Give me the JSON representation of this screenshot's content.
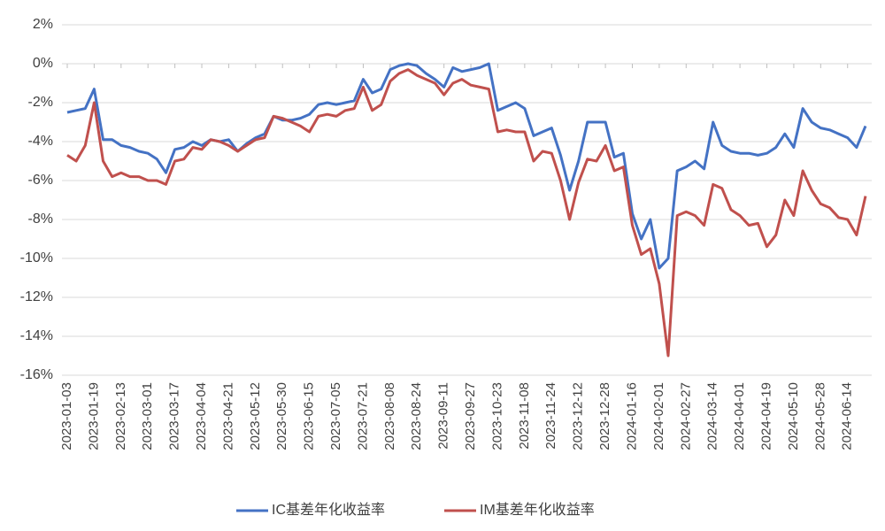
{
  "chart_data": {
    "type": "line",
    "categories": [
      "2023-01-03",
      null,
      null,
      "2023-01-19",
      null,
      null,
      "2023-02-13",
      null,
      null,
      "2023-03-01",
      null,
      null,
      "2023-03-17",
      null,
      null,
      "2023-04-04",
      null,
      null,
      "2023-04-21",
      null,
      null,
      "2023-05-12",
      null,
      null,
      "2023-05-30",
      null,
      null,
      "2023-06-15",
      null,
      null,
      "2023-07-05",
      null,
      null,
      "2023-07-21",
      null,
      null,
      "2023-08-08",
      null,
      null,
      "2023-08-24",
      null,
      null,
      "2023-09-11",
      null,
      null,
      "2023-09-27",
      null,
      null,
      "2023-10-23",
      null,
      null,
      "2023-11-08",
      null,
      null,
      "2023-11-24",
      null,
      null,
      "2023-12-12",
      null,
      null,
      "2023-12-28",
      null,
      null,
      "2024-01-16",
      null,
      null,
      "2024-02-01",
      null,
      null,
      "2024-02-27",
      null,
      null,
      "2024-03-14",
      null,
      null,
      "2024-04-01",
      null,
      null,
      "2024-04-19",
      null,
      null,
      "2024-05-10",
      null,
      null,
      "2024-05-28",
      null,
      null,
      "2024-06-14",
      null,
      null
    ],
    "series": [
      {
        "name": "IC基差年化收益率",
        "color": "#4472c4",
        "values": [
          -2.5,
          -2.4,
          -2.3,
          -1.3,
          -3.9,
          -3.9,
          -4.2,
          -4.3,
          -4.5,
          -4.6,
          -4.9,
          -5.6,
          -4.4,
          -4.3,
          -4.0,
          -4.2,
          -3.9,
          -4.0,
          -3.9,
          -4.5,
          -4.1,
          -3.8,
          -3.6,
          -2.7,
          -2.9,
          -2.9,
          -2.8,
          -2.6,
          -2.1,
          -2.0,
          -2.1,
          -2.0,
          -1.9,
          -0.8,
          -1.5,
          -1.3,
          -0.3,
          -0.1,
          0.0,
          -0.1,
          -0.5,
          -0.8,
          -1.2,
          -0.2,
          -0.4,
          -0.3,
          -0.2,
          0.0,
          -2.4,
          -2.2,
          -2.0,
          -2.3,
          -3.7,
          -3.5,
          -3.3,
          -4.7,
          -6.5,
          -5.0,
          -3.0,
          -3.0,
          -3.0,
          -4.8,
          -4.6,
          -7.7,
          -9.0,
          -8.0,
          -10.5,
          -10.0,
          -5.5,
          -5.3,
          -5.0,
          -5.4,
          -3.0,
          -4.2,
          -4.5,
          -4.6,
          -4.6,
          -4.7,
          -4.6,
          -4.3,
          -3.6,
          -4.3,
          -2.3,
          -3.0,
          -3.3,
          -3.4,
          -3.6,
          -3.8,
          -4.3,
          -3.2
        ]
      },
      {
        "name": "IM基差年化收益率",
        "color": "#c0504d",
        "values": [
          -4.7,
          -5.0,
          -4.2,
          -2.0,
          -5.0,
          -5.8,
          -5.6,
          -5.8,
          -5.8,
          -6.0,
          -6.0,
          -6.2,
          -5.0,
          -4.9,
          -4.3,
          -4.4,
          -3.9,
          -4.0,
          -4.2,
          -4.5,
          -4.2,
          -3.9,
          -3.8,
          -2.7,
          -2.8,
          -3.0,
          -3.2,
          -3.5,
          -2.7,
          -2.6,
          -2.7,
          -2.4,
          -2.3,
          -1.2,
          -2.4,
          -2.1,
          -0.9,
          -0.5,
          -0.3,
          -0.6,
          -0.8,
          -1.0,
          -1.6,
          -1.0,
          -0.8,
          -1.1,
          -1.2,
          -1.3,
          -3.5,
          -3.4,
          -3.5,
          -3.5,
          -5.0,
          -4.5,
          -4.6,
          -6.0,
          -8.0,
          -6.1,
          -4.9,
          -5.0,
          -4.2,
          -5.5,
          -5.3,
          -8.3,
          -9.8,
          -9.5,
          -11.3,
          -15.0,
          -7.8,
          -7.6,
          -7.8,
          -8.3,
          -6.2,
          -6.4,
          -7.5,
          -7.8,
          -8.3,
          -8.2,
          -9.4,
          -8.8,
          -7.0,
          -7.8,
          -5.5,
          -6.5,
          -7.2,
          -7.4,
          -7.9,
          -8.0,
          -8.8,
          -6.8
        ]
      }
    ],
    "ylim": [
      -16,
      2
    ],
    "yticks": [
      {
        "value": 2,
        "label": "2%"
      },
      {
        "value": 0,
        "label": "0%"
      },
      {
        "value": -2,
        "label": "-2%"
      },
      {
        "value": -4,
        "label": "-4%"
      },
      {
        "value": -6,
        "label": "-6%"
      },
      {
        "value": -8,
        "label": "-8%"
      },
      {
        "value": -10,
        "label": "-10%"
      },
      {
        "value": -12,
        "label": "-12%"
      },
      {
        "value": -14,
        "label": "-14%"
      },
      {
        "value": -16,
        "label": "-16%"
      }
    ],
    "grid": true
  }
}
